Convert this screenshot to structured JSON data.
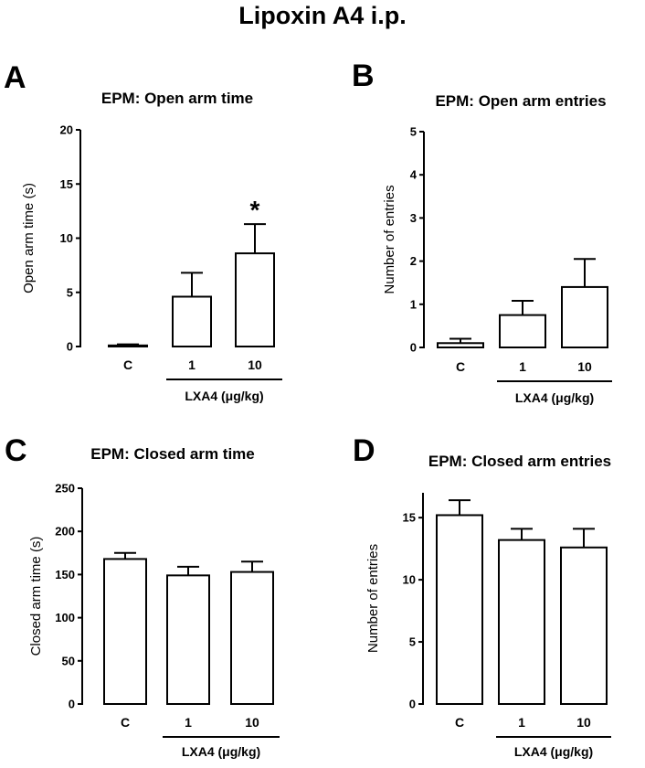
{
  "figure_title": "Lipoxin A4 i.p.",
  "chart_data": [
    {
      "type": "bar",
      "panel_letter": "A",
      "title": "EPM: Open arm time",
      "ylabel": "Open arm time (s)",
      "xlabel": "",
      "categories": [
        "C",
        "1",
        "10"
      ],
      "group_label": "LXA4 (μg/kg)",
      "values": [
        0.1,
        4.6,
        8.6
      ],
      "errors": [
        0.1,
        2.2,
        2.7
      ],
      "annotations": [
        "",
        "",
        "*"
      ],
      "ylim": [
        0,
        20
      ],
      "yticks": [
        "0",
        "5",
        "10",
        "15",
        "20"
      ],
      "grid": false,
      "legend": "none"
    },
    {
      "type": "bar",
      "panel_letter": "B",
      "title": "EPM: Open arm entries",
      "ylabel": "Number of entries",
      "xlabel": "",
      "categories": [
        "C",
        "1",
        "10"
      ],
      "group_label": "LXA4 (μg/kg)",
      "values": [
        0.1,
        0.75,
        1.4
      ],
      "errors": [
        0.1,
        0.33,
        0.65
      ],
      "annotations": [
        "",
        "",
        ""
      ],
      "ylim": [
        0,
        5
      ],
      "yticks": [
        "0",
        "1",
        "2",
        "3",
        "4",
        "5"
      ],
      "grid": false,
      "legend": "none"
    },
    {
      "type": "bar",
      "panel_letter": "C",
      "title": "EPM: Closed arm time",
      "ylabel": "Closed arm time (s)",
      "xlabel": "",
      "categories": [
        "C",
        "1",
        "10"
      ],
      "group_label": "LXA4 (μg/kg)",
      "values": [
        168,
        149,
        153
      ],
      "errors": [
        7,
        10,
        12
      ],
      "annotations": [
        "",
        "",
        ""
      ],
      "ylim": [
        0,
        250
      ],
      "yticks": [
        "0",
        "50",
        "100",
        "150",
        "200",
        "250"
      ],
      "grid": false,
      "legend": "none"
    },
    {
      "type": "bar",
      "panel_letter": "D",
      "title": "EPM: Closed arm entries",
      "ylabel": "Number of entries",
      "xlabel": "",
      "categories": [
        "C",
        "1",
        "10"
      ],
      "group_label": "LXA4 (μg/kg)",
      "values": [
        15.2,
        13.2,
        12.6
      ],
      "errors": [
        1.2,
        0.9,
        1.5
      ],
      "annotations": [
        "",
        "",
        ""
      ],
      "ylim": [
        0,
        17
      ],
      "yticks": [
        "0",
        "5",
        "10",
        "15"
      ],
      "grid": false,
      "legend": "none"
    }
  ]
}
